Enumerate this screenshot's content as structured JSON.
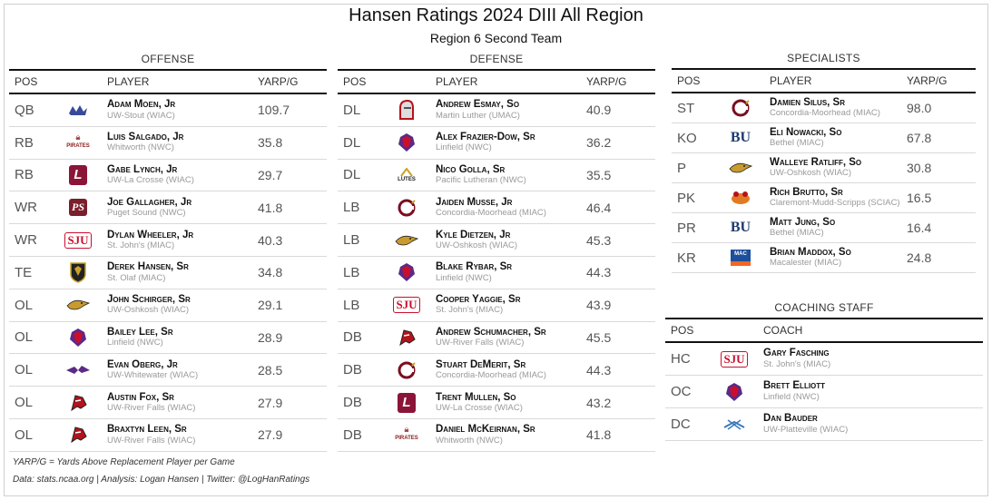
{
  "title": "Hansen Ratings 2024 DIII All Region",
  "subtitle": "Region 6 Second Team",
  "offense": {
    "label": "OFFENSE",
    "headers": {
      "pos": "POS",
      "player": "PLAYER",
      "value": "YARP/G"
    },
    "rows": [
      {
        "pos": "QB",
        "name": "Adam Moen, Jr",
        "team": "UW-Stout (WIAC)",
        "value": "109.7",
        "logo": "uw-stout-logo"
      },
      {
        "pos": "RB",
        "name": "Luis Salgado, Jr",
        "team": "Whitworth (NWC)",
        "value": "35.8",
        "logo": "whitworth-logo"
      },
      {
        "pos": "RB",
        "name": "Gabe Lynch, Jr",
        "team": "UW-La Crosse (WIAC)",
        "value": "29.7",
        "logo": "uw-la-crosse-logo"
      },
      {
        "pos": "WR",
        "name": "Joe Gallagher, Jr",
        "team": "Puget Sound (NWC)",
        "value": "41.8",
        "logo": "puget-sound-logo"
      },
      {
        "pos": "WR",
        "name": "Dylan Wheeler, Jr",
        "team": "St. John's (MIAC)",
        "value": "40.3",
        "logo": "st-johns-logo"
      },
      {
        "pos": "TE",
        "name": "Derek Hansen, Sr",
        "team": "St. Olaf (MIAC)",
        "value": "34.8",
        "logo": "st-olaf-logo"
      },
      {
        "pos": "OL",
        "name": "John Schirger, Sr",
        "team": "UW-Oshkosh (WIAC)",
        "value": "29.1",
        "logo": "uw-oshkosh-logo"
      },
      {
        "pos": "OL",
        "name": "Bailey Lee, Sr",
        "team": "Linfield (NWC)",
        "value": "28.9",
        "logo": "linfield-logo"
      },
      {
        "pos": "OL",
        "name": "Evan Oberg, Jr",
        "team": "UW-Whitewater (WIAC)",
        "value": "28.5",
        "logo": "uw-whitewater-logo"
      },
      {
        "pos": "OL",
        "name": "Austin Fox, Sr",
        "team": "UW-River Falls (WIAC)",
        "value": "27.9",
        "logo": "uw-river-falls-logo"
      },
      {
        "pos": "OL",
        "name": "Braxtyn Leen, Sr",
        "team": "UW-River Falls (WIAC)",
        "value": "27.9",
        "logo": "uw-river-falls-logo"
      }
    ]
  },
  "defense": {
    "label": "DEFENSE",
    "headers": {
      "pos": "POS",
      "player": "PLAYER",
      "value": "YARP/G"
    },
    "rows": [
      {
        "pos": "DL",
        "name": "Andrew Esmay, So",
        "team": "Martin Luther (UMAC)",
        "value": "40.9",
        "logo": "martin-luther-logo"
      },
      {
        "pos": "DL",
        "name": "Alex Frazier-Dow, Sr",
        "team": "Linfield (NWC)",
        "value": "36.2",
        "logo": "linfield-logo"
      },
      {
        "pos": "DL",
        "name": "Nico Golla, Sr",
        "team": "Pacific Lutheran (NWC)",
        "value": "35.5",
        "logo": "pacific-lutheran-logo"
      },
      {
        "pos": "LB",
        "name": "Jaiden Musse, Jr",
        "team": "Concordia-Moorhead (MIAC)",
        "value": "46.4",
        "logo": "concordia-moorhead-logo"
      },
      {
        "pos": "LB",
        "name": "Kyle Dietzen, Jr",
        "team": "UW-Oshkosh (WIAC)",
        "value": "45.3",
        "logo": "uw-oshkosh-logo"
      },
      {
        "pos": "LB",
        "name": "Blake Rybar, Sr",
        "team": "Linfield (NWC)",
        "value": "44.3",
        "logo": "linfield-logo"
      },
      {
        "pos": "LB",
        "name": "Cooper Yaggie, Sr",
        "team": "St. John's (MIAC)",
        "value": "43.9",
        "logo": "st-johns-logo"
      },
      {
        "pos": "DB",
        "name": "Andrew Schumacher, Sr",
        "team": "UW-River Falls (WIAC)",
        "value": "45.5",
        "logo": "uw-river-falls-logo"
      },
      {
        "pos": "DB",
        "name": "Stuart DeMerit, Sr",
        "team": "Concordia-Moorhead (MIAC)",
        "value": "44.3",
        "logo": "concordia-moorhead-logo"
      },
      {
        "pos": "DB",
        "name": "Trent Mullen, So",
        "team": "UW-La Crosse (WIAC)",
        "value": "43.2",
        "logo": "uw-la-crosse-logo"
      },
      {
        "pos": "DB",
        "name": "Daniel McKeirnan, Sr",
        "team": "Whitworth (NWC)",
        "value": "41.8",
        "logo": "whitworth-logo"
      }
    ]
  },
  "specialists": {
    "label": "SPECIALISTS",
    "headers": {
      "pos": "POS",
      "player": "PLAYER",
      "value": "YARP/G"
    },
    "rows": [
      {
        "pos": "ST",
        "name": "Damien Silus, Sr",
        "team": "Concordia-Moorhead (MIAC)",
        "value": "98.0",
        "logo": "concordia-moorhead-logo"
      },
      {
        "pos": "KO",
        "name": "Eli Nowacki, So",
        "team": "Bethel (MIAC)",
        "value": "67.8",
        "logo": "bethel-logo"
      },
      {
        "pos": "P",
        "name": "Walleye Ratliff, So",
        "team": "UW-Oshkosh (WIAC)",
        "value": "30.8",
        "logo": "uw-oshkosh-logo"
      },
      {
        "pos": "PK",
        "name": "Rich Brutto, Sr",
        "team": "Claremont-Mudd-Scripps (SCIAC)",
        "value": "16.5",
        "logo": "claremont-mudd-scripps-logo"
      },
      {
        "pos": "PR",
        "name": "Matt Jung, So",
        "team": "Bethel (MIAC)",
        "value": "16.4",
        "logo": "bethel-logo"
      },
      {
        "pos": "KR",
        "name": "Brian Maddox, So",
        "team": "Macalester (MIAC)",
        "value": "24.8",
        "logo": "macalester-logo"
      }
    ]
  },
  "coaching": {
    "label": "COACHING STAFF",
    "headers": {
      "pos": "POS",
      "coach": "COACH"
    },
    "rows": [
      {
        "pos": "HC",
        "name": "Gary Fasching",
        "team": "St. John's (MIAC)",
        "logo": "st-johns-logo"
      },
      {
        "pos": "OC",
        "name": "Brett Elliott",
        "team": "Linfield (NWC)",
        "logo": "linfield-logo"
      },
      {
        "pos": "DC",
        "name": "Dan Bauder",
        "team": "UW-Platteville (WIAC)",
        "logo": "uw-platteville-logo"
      }
    ]
  },
  "footnote": "YARP/G = Yards Above Replacement Player per Game",
  "credits": "Data: stats.ncaa.org | Analysis: Logan Hansen | Twitter: @LogHanRatings",
  "logo_text": {
    "sju": "SJU",
    "bu": "BU",
    "mac": "MAC",
    "lutes": "LUTES",
    "pirates": "PIRATES",
    "ps": "PS",
    "l": "L"
  },
  "colors": {
    "sju_red": "#c8102e",
    "bethel_navy": "#1f3a6e",
    "linfield_purple": "#5b2a86",
    "linfield_red": "#c8102e",
    "oshkosh_gold": "#c99a2e",
    "laCrosse_maroon": "#8a1538",
    "pugetSound_maroon": "#7a1f2b",
    "stOlaf_gold": "#c9a227",
    "riverFalls_red": "#b5121b",
    "concordia_maroon": "#7a0e20",
    "macalester_blue": "#1c4f9c",
    "macalester_orange": "#f26722",
    "platteville_blue": "#3d7ab8"
  }
}
